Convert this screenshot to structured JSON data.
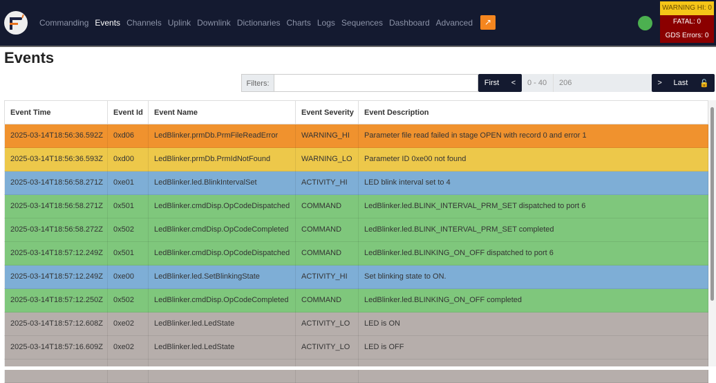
{
  "nav": {
    "items": [
      "Commanding",
      "Events",
      "Channels",
      "Uplink",
      "Downlink",
      "Dictionaries",
      "Charts",
      "Logs",
      "Sequences",
      "Dashboard",
      "Advanced"
    ],
    "active": "Events",
    "external_icon": "external-link-icon",
    "status_color": "#4cb050"
  },
  "alerts": {
    "warning_hi": "WARNING HI: 0",
    "fatal": "FATAL: 0",
    "gds_errors": "GDS Errors: 0"
  },
  "page_title": "Events",
  "filters": {
    "label": "Filters:",
    "value": "",
    "first": "First",
    "prev": "<",
    "range": "0 - 40",
    "total": "206",
    "next": ">",
    "last": "Last",
    "lock_icon": "unlock-icon"
  },
  "table": {
    "headers": [
      "Event Time",
      "Event Id",
      "Event Name",
      "Event Severity",
      "Event Description"
    ],
    "severity_colors": {
      "WARNING_HI": "#f0922e",
      "WARNING_LO": "#edc84a",
      "ACTIVITY_HI": "#7eaed6",
      "COMMAND": "#7fc77c",
      "ACTIVITY_LO": "#b6aeab"
    },
    "rows": [
      [
        "2025-03-14T18:56:36.592Z",
        "0xd06",
        "LedBlinker.prmDb.PrmFileReadError",
        "WARNING_HI",
        "Parameter file read failed in stage OPEN with record 0 and error 1"
      ],
      [
        "2025-03-14T18:56:36.593Z",
        "0xd00",
        "LedBlinker.prmDb.PrmIdNotFound",
        "WARNING_LO",
        "Parameter ID 0xe00 not found"
      ],
      [
        "2025-03-14T18:56:58.271Z",
        "0xe01",
        "LedBlinker.led.BlinkIntervalSet",
        "ACTIVITY_HI",
        "LED blink interval set to 4"
      ],
      [
        "2025-03-14T18:56:58.271Z",
        "0x501",
        "LedBlinker.cmdDisp.OpCodeDispatched",
        "COMMAND",
        "LedBlinker.led.BLINK_INTERVAL_PRM_SET dispatched to port 6"
      ],
      [
        "2025-03-14T18:56:58.272Z",
        "0x502",
        "LedBlinker.cmdDisp.OpCodeCompleted",
        "COMMAND",
        "LedBlinker.led.BLINK_INTERVAL_PRM_SET completed"
      ],
      [
        "2025-03-14T18:57:12.249Z",
        "0x501",
        "LedBlinker.cmdDisp.OpCodeDispatched",
        "COMMAND",
        "LedBlinker.led.BLINKING_ON_OFF dispatched to port 6"
      ],
      [
        "2025-03-14T18:57:12.249Z",
        "0xe00",
        "LedBlinker.led.SetBlinkingState",
        "ACTIVITY_HI",
        "Set blinking state to ON."
      ],
      [
        "2025-03-14T18:57:12.250Z",
        "0x502",
        "LedBlinker.cmdDisp.OpCodeCompleted",
        "COMMAND",
        "LedBlinker.led.BLINKING_ON_OFF completed"
      ],
      [
        "2025-03-14T18:57:12.608Z",
        "0xe02",
        "LedBlinker.led.LedState",
        "ACTIVITY_LO",
        "LED is ON"
      ],
      [
        "2025-03-14T18:57:16.609Z",
        "0xe02",
        "LedBlinker.led.LedState",
        "ACTIVITY_LO",
        "LED is OFF"
      ]
    ]
  }
}
